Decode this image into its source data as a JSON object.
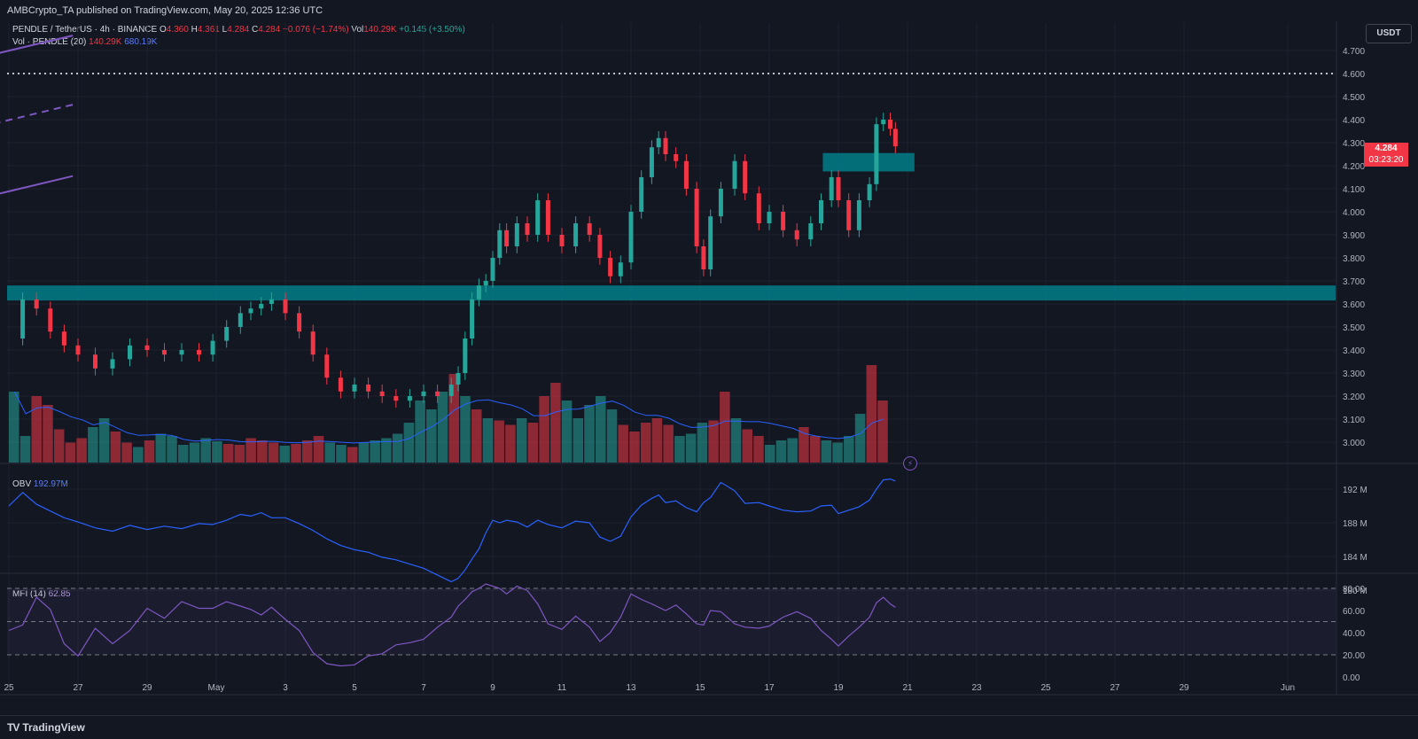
{
  "header": {
    "publisher": "AMBCrypto_TA published on TradingView.com, May 20, 2025 12:36 UTC"
  },
  "symbol": {
    "name": "PENDLE / TetherUS · 4h · BINANCE",
    "o_label": "O",
    "o": "4.360",
    "h_label": "H",
    "h": "4.361",
    "l_label": "L",
    "l": "4.284",
    "c_label": "C",
    "c": "4.284",
    "change": "−0.076 (−1.74%)",
    "vol_label": "Vol",
    "vol": "140.29K",
    "vol_change": "+0.145 (+3.50%)"
  },
  "volume_indicator": {
    "label": "Vol · PENDLE (20)",
    "value": "140.29K",
    "ma": "680.19K"
  },
  "obv_indicator": {
    "label": "OBV",
    "value": "192.97M"
  },
  "mfi_indicator": {
    "label": "MFI (14)",
    "value": "62.85"
  },
  "currency_button": "USDT",
  "last_price": {
    "price": "4.284",
    "countdown": "03:23:20"
  },
  "footer": {
    "logo": "TradingView",
    "logo_mark": "TV"
  },
  "colors": {
    "background": "#131722",
    "up": "#26a69a",
    "down": "#f23645",
    "channel": "#7e57c2",
    "zone": "#00838f",
    "obv": "#2962ff",
    "mfi": "#7e57c2"
  },
  "chart_data": [
    {
      "type": "candlestick",
      "title": "PENDLE / TetherUS · 4h · BINANCE",
      "x_ticks": [
        "25",
        "27",
        "29",
        "May",
        "3",
        "5",
        "7",
        "9",
        "11",
        "13",
        "15",
        "17",
        "19",
        "21",
        "23",
        "25",
        "27",
        "29",
        "Jun"
      ],
      "y_ticks": [
        "4.700",
        "4.600",
        "4.500",
        "4.400",
        "4.300",
        "4.200",
        "4.100",
        "4.000",
        "3.900",
        "3.800",
        "3.700",
        "3.600",
        "3.500",
        "3.400",
        "3.300",
        "3.200",
        "3.100",
        "3.000"
      ],
      "ylim": [
        2.92,
        4.79
      ],
      "grid": true,
      "dotted_resistance": 4.6,
      "support_zone": [
        3.615,
        3.68
      ],
      "breakout_zone": [
        4.175,
        4.255
      ],
      "channel": {
        "upper": [
          [
            8.85,
            4.125
          ],
          [
            26.85,
            4.765
          ]
        ],
        "mid": [
          [
            8.85,
            3.815
          ],
          [
            26.85,
            4.465
          ]
        ],
        "lower": [
          [
            8.85,
            3.51
          ],
          [
            26.85,
            4.155
          ]
        ]
      },
      "price_path": [
        [
          25.0,
          3.45
        ],
        [
          25.4,
          3.62
        ],
        [
          25.8,
          3.58
        ],
        [
          26.2,
          3.48
        ],
        [
          26.6,
          3.42
        ],
        [
          27.0,
          3.38
        ],
        [
          27.5,
          3.32
        ],
        [
          28.0,
          3.36
        ],
        [
          28.5,
          3.42
        ],
        [
          29.0,
          3.4
        ],
        [
          29.5,
          3.38
        ],
        [
          30.0,
          3.4
        ],
        [
          30.5,
          3.38
        ],
        [
          30.9,
          3.44
        ],
        [
          31.3,
          3.5
        ],
        [
          31.7,
          3.56
        ],
        [
          32.0,
          3.58
        ],
        [
          32.3,
          3.6
        ],
        [
          32.6,
          3.62
        ],
        [
          33.0,
          3.56
        ],
        [
          33.4,
          3.48
        ],
        [
          33.8,
          3.38
        ],
        [
          34.2,
          3.28
        ],
        [
          34.6,
          3.22
        ],
        [
          35.0,
          3.25
        ],
        [
          35.4,
          3.22
        ],
        [
          35.8,
          3.2
        ],
        [
          36.2,
          3.18
        ],
        [
          36.6,
          3.2
        ],
        [
          37.0,
          3.22
        ],
        [
          37.4,
          3.2
        ],
        [
          37.8,
          3.25
        ],
        [
          38.0,
          3.3
        ],
        [
          38.2,
          3.45
        ],
        [
          38.4,
          3.62
        ],
        [
          38.6,
          3.68
        ],
        [
          38.8,
          3.7
        ],
        [
          39.0,
          3.8
        ],
        [
          39.2,
          3.92
        ],
        [
          39.4,
          3.85
        ],
        [
          39.7,
          3.95
        ],
        [
          40.0,
          3.9
        ],
        [
          40.3,
          4.05
        ],
        [
          40.6,
          3.9
        ],
        [
          41.0,
          3.85
        ],
        [
          41.4,
          3.95
        ],
        [
          41.8,
          3.9
        ],
        [
          42.1,
          3.8
        ],
        [
          42.4,
          3.72
        ],
        [
          42.7,
          3.78
        ],
        [
          43.0,
          4.0
        ],
        [
          43.3,
          4.15
        ],
        [
          43.6,
          4.28
        ],
        [
          43.8,
          4.32
        ],
        [
          44.0,
          4.25
        ],
        [
          44.3,
          4.22
        ],
        [
          44.6,
          4.1
        ],
        [
          44.9,
          3.85
        ],
        [
          45.1,
          3.75
        ],
        [
          45.3,
          3.98
        ],
        [
          45.6,
          4.1
        ],
        [
          46.0,
          4.22
        ],
        [
          46.3,
          4.08
        ],
        [
          46.7,
          3.95
        ],
        [
          47.0,
          4.0
        ],
        [
          47.4,
          3.92
        ],
        [
          47.8,
          3.88
        ],
        [
          48.2,
          3.95
        ],
        [
          48.5,
          4.05
        ],
        [
          48.8,
          4.15
        ],
        [
          49.0,
          4.05
        ],
        [
          49.3,
          3.92
        ],
        [
          49.6,
          4.05
        ],
        [
          49.9,
          4.12
        ],
        [
          50.1,
          4.38
        ],
        [
          50.3,
          4.4
        ],
        [
          50.5,
          4.36
        ],
        [
          50.65,
          4.284
        ]
      ],
      "volume_bars": [
        160,
        60,
        150,
        130,
        75,
        45,
        55,
        80,
        100,
        70,
        45,
        35,
        50,
        65,
        60,
        40,
        45,
        55,
        48,
        42,
        40,
        55,
        50,
        45,
        38,
        42,
        50,
        60,
        45,
        40,
        35,
        45,
        50,
        55,
        65,
        90,
        140,
        120,
        160,
        200,
        150,
        120,
        100,
        95,
        85,
        100,
        90,
        150,
        180,
        140,
        100,
        130,
        150,
        120,
        85,
        70,
        90,
        100,
        85,
        60,
        65,
        90,
        95,
        160,
        100,
        75,
        60,
        40,
        50,
        55,
        80,
        60,
        50,
        45,
        60,
        110,
        220,
        140
      ],
      "volume_ma": "680.19K"
    },
    {
      "type": "line",
      "title": "OBV",
      "y_ticks": [
        "192 M",
        "188 M",
        "184 M",
        "180 M"
      ],
      "ylim": [
        178.8,
        193.8
      ],
      "x": [
        25.0,
        25.4,
        25.8,
        26.2,
        26.6,
        27.0,
        27.5,
        28.0,
        28.5,
        29.0,
        29.5,
        30.0,
        30.5,
        30.9,
        31.3,
        31.7,
        32.0,
        32.3,
        32.6,
        33.0,
        33.4,
        33.8,
        34.2,
        34.6,
        35.0,
        35.4,
        35.8,
        36.2,
        36.6,
        37.0,
        37.4,
        37.8,
        38.0,
        38.2,
        38.4,
        38.6,
        38.8,
        39.0,
        39.2,
        39.4,
        39.7,
        40.0,
        40.3,
        40.6,
        41.0,
        41.4,
        41.8,
        42.1,
        42.4,
        42.7,
        43.0,
        43.3,
        43.6,
        43.8,
        44.0,
        44.3,
        44.6,
        44.9,
        45.1,
        45.3,
        45.6,
        46.0,
        46.3,
        46.7,
        47.0,
        47.4,
        47.8,
        48.2,
        48.5,
        48.8,
        49.0,
        49.3,
        49.6,
        49.9,
        50.1,
        50.3,
        50.5,
        50.65
      ],
      "values": [
        190.0,
        191.6,
        190.2,
        189.4,
        188.6,
        188.1,
        187.4,
        187.0,
        187.7,
        187.2,
        187.6,
        187.3,
        187.9,
        187.8,
        188.3,
        189.0,
        188.8,
        189.2,
        188.6,
        188.6,
        187.9,
        187.1,
        186.1,
        185.3,
        184.8,
        184.5,
        183.9,
        183.6,
        183.1,
        182.6,
        181.8,
        181.0,
        181.4,
        182.4,
        183.7,
        184.9,
        186.8,
        188.3,
        188.0,
        188.3,
        188.1,
        187.5,
        188.3,
        187.8,
        187.4,
        188.2,
        188.0,
        186.3,
        185.8,
        186.4,
        188.7,
        190.1,
        190.9,
        191.3,
        190.4,
        190.6,
        189.8,
        189.3,
        190.4,
        191.0,
        192.8,
        191.8,
        190.3,
        190.4,
        190.0,
        189.5,
        189.3,
        189.4,
        190.0,
        190.1,
        189.1,
        189.5,
        189.9,
        190.7,
        192.0,
        193.1,
        193.2,
        192.97
      ]
    },
    {
      "type": "line",
      "title": "MFI (14)",
      "y_ticks": [
        "80.00",
        "60.00",
        "40.00",
        "20.00",
        "0.00"
      ],
      "bands": [
        20,
        50,
        80
      ],
      "ylim": [
        0,
        81.6
      ],
      "x": [
        25.0,
        25.4,
        25.8,
        26.2,
        26.6,
        27.0,
        27.5,
        28.0,
        28.5,
        29.0,
        29.5,
        30.0,
        30.5,
        30.9,
        31.3,
        31.7,
        32.0,
        32.3,
        32.6,
        33.0,
        33.4,
        33.8,
        34.2,
        34.6,
        35.0,
        35.4,
        35.8,
        36.2,
        36.6,
        37.0,
        37.4,
        37.8,
        38.0,
        38.2,
        38.4,
        38.6,
        38.8,
        39.0,
        39.2,
        39.4,
        39.7,
        40.0,
        40.3,
        40.6,
        41.0,
        41.4,
        41.8,
        42.1,
        42.4,
        42.7,
        43.0,
        43.3,
        43.6,
        43.8,
        44.0,
        44.3,
        44.6,
        44.9,
        45.1,
        45.3,
        45.6,
        46.0,
        46.3,
        46.7,
        47.0,
        47.4,
        47.8,
        48.2,
        48.5,
        48.8,
        49.0,
        49.3,
        49.6,
        49.9,
        50.1,
        50.3,
        50.5,
        50.65
      ],
      "values": [
        42,
        47,
        72,
        61,
        30,
        19,
        44,
        30,
        42,
        62,
        53,
        68,
        62,
        62,
        68,
        64,
        61,
        56,
        63,
        52,
        42,
        22,
        12,
        10,
        11,
        19,
        21,
        29,
        31,
        34,
        45,
        54,
        64,
        70,
        77,
        80,
        84,
        82,
        80,
        75,
        82,
        78,
        66,
        48,
        43,
        55,
        45,
        32,
        40,
        54,
        75,
        70,
        66,
        63,
        60,
        65,
        57,
        48,
        47,
        60,
        59,
        48,
        45,
        44,
        46,
        54,
        59,
        53,
        42,
        34,
        28,
        37,
        45,
        54,
        67,
        72,
        66,
        62.85
      ]
    }
  ]
}
